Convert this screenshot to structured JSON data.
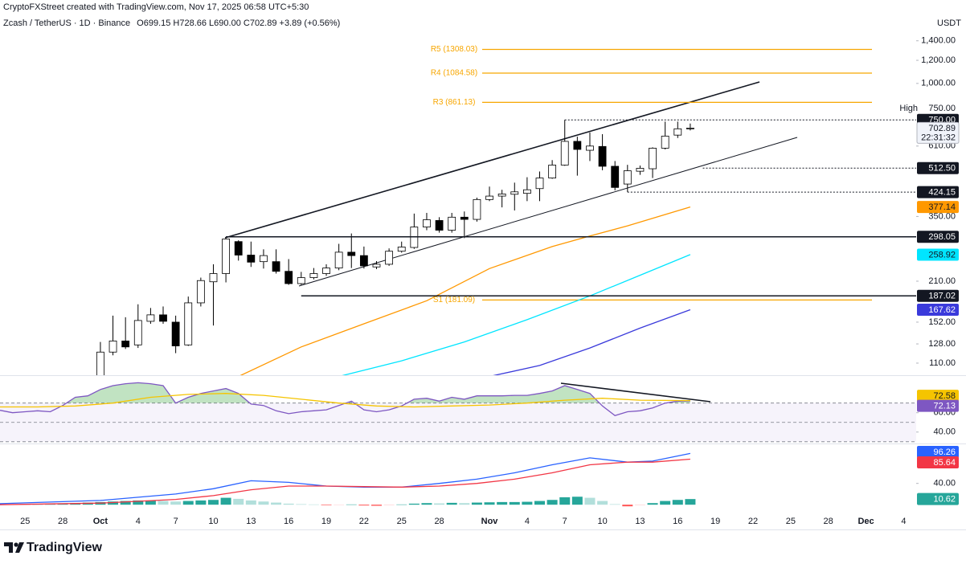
{
  "credit": "CryptoFXStreet created with TradingView.com, Nov 17, 2025 06:58 UTC+5:30",
  "quote": "O699.15 H728.66 L690.00 C702.89 +3.89 (+0.56%)",
  "currency": "USDT",
  "logo": "TradingView",
  "chart_data": [
    {
      "type": "candlestick",
      "title": "Zcash / TetherUS · 1D · Binance",
      "x": [
        "10-01",
        "10-02",
        "10-03",
        "10-04",
        "10-05",
        "10-06",
        "10-07",
        "10-08",
        "10-09",
        "10-10",
        "10-11",
        "10-12",
        "10-13",
        "10-14",
        "10-15",
        "10-16",
        "10-17",
        "10-18",
        "10-19",
        "10-20",
        "10-21",
        "10-22",
        "10-23",
        "10-24",
        "10-25",
        "10-26",
        "10-27",
        "10-28",
        "10-29",
        "10-30",
        "10-31",
        "11-01",
        "11-02",
        "11-03",
        "11-04",
        "11-05",
        "11-06",
        "11-07",
        "11-08",
        "11-09",
        "11-10",
        "11-11",
        "11-12",
        "11-13",
        "11-14",
        "11-15",
        "11-16",
        "11-17"
      ],
      "open": [
        98,
        120,
        131,
        127,
        153,
        161,
        152,
        127,
        177,
        209,
        223,
        287,
        258,
        245,
        245,
        227,
        206,
        216,
        223,
        233,
        264,
        257,
        235,
        240,
        266,
        274,
        322,
        339,
        314,
        348,
        342,
        400,
        411,
        417,
        420,
        436,
        474,
        525,
        633,
        590,
        608,
        520,
        452,
        500,
        510,
        600,
        665,
        699.15
      ],
      "high": [
        130,
        160,
        158,
        175,
        170,
        172,
        160,
        186,
        216,
        240,
        297,
        290,
        287,
        270,
        270,
        250,
        226,
        233,
        240,
        282,
        306,
        276,
        246,
        272,
        287,
        358,
        360,
        348,
        360,
        364,
        406,
        443,
        432,
        457,
        477,
        499,
        546,
        750,
        657,
        679,
        670,
        542,
        526,
        523,
        604,
        740,
        740,
        728.66
      ],
      "low": [
        96,
        117,
        123,
        124,
        150,
        150,
        119,
        126,
        172,
        148,
        208,
        247,
        235,
        232,
        223,
        204,
        204,
        213,
        219,
        229,
        233,
        232,
        231,
        237,
        263,
        271,
        314,
        308,
        308,
        295,
        336,
        395,
        376,
        367,
        395,
        395,
        471,
        522,
        483,
        542,
        504,
        430,
        424.15,
        486,
        474,
        594,
        650,
        690
      ],
      "close": [
        120,
        131,
        125,
        154,
        161,
        153,
        126,
        177,
        211,
        223,
        293,
        258,
        244,
        257,
        227,
        206,
        216,
        223,
        233,
        264,
        257,
        237,
        240,
        266,
        275,
        322,
        341,
        314,
        348,
        342,
        400,
        411,
        418,
        425,
        432,
        474,
        525,
        633,
        594,
        610,
        520,
        440,
        502,
        512,
        600,
        660,
        699,
        702.89
      ],
      "countdown": "22:31:32",
      "colors": {
        "up": "#ffffff",
        "down": "#000000",
        "wick": "#000000",
        "last": "#f0f3fa"
      },
      "log_scale": true,
      "grid": false,
      "xlim": [
        "09-23",
        "12-05"
      ],
      "xticks": [
        {
          "value": "09-25",
          "label": "25"
        },
        {
          "value": "09-28",
          "label": "28"
        },
        {
          "value": "10-01",
          "label": "Oct"
        },
        {
          "value": "10-04",
          "label": "4"
        },
        {
          "value": "10-07",
          "label": "7"
        },
        {
          "value": "10-10",
          "label": "10"
        },
        {
          "value": "10-13",
          "label": "13"
        },
        {
          "value": "10-16",
          "label": "16"
        },
        {
          "value": "10-19",
          "label": "19"
        },
        {
          "value": "10-22",
          "label": "22"
        },
        {
          "value": "10-25",
          "label": "25"
        },
        {
          "value": "10-28",
          "label": "28"
        },
        {
          "value": "11-01",
          "label": "Nov"
        },
        {
          "value": "11-04",
          "label": "4"
        },
        {
          "value": "11-07",
          "label": "7"
        },
        {
          "value": "11-10",
          "label": "10"
        },
        {
          "value": "11-13",
          "label": "13"
        },
        {
          "value": "11-16",
          "label": "16"
        },
        {
          "value": "11-19",
          "label": "19"
        },
        {
          "value": "11-22",
          "label": "22"
        },
        {
          "value": "11-25",
          "label": "25"
        },
        {
          "value": "11-28",
          "label": "28"
        },
        {
          "value": "12-01",
          "label": "Dec"
        },
        {
          "value": "12-04",
          "label": "4"
        }
      ],
      "ylim": [
        100,
        1680
      ],
      "yticks": [
        {
          "value": 110,
          "label": "110.00"
        },
        {
          "value": 128,
          "label": "128.00"
        },
        {
          "value": 152,
          "label": "152.00"
        },
        {
          "value": 210,
          "label": "210.00"
        },
        {
          "value": 350,
          "label": "350.00"
        },
        {
          "value": 610,
          "label": "610.00"
        },
        {
          "value": 1000,
          "label": "1,000.00"
        },
        {
          "value": 1200,
          "label": "1,200.00"
        },
        {
          "value": 1400,
          "label": "1,400.00"
        }
      ],
      "pivot_color": "#f7a600",
      "pivots": [
        {
          "label": "R5 (1308.03)",
          "value": 1308.03
        },
        {
          "label": "R4 (1084.58)",
          "value": 1084.58
        },
        {
          "label": "R3 (861.13)",
          "value": 861.13
        },
        {
          "label": "S1 (181.09)",
          "value": 181.09
        }
      ],
      "levels": [
        {
          "value": 750,
          "label": "750.00",
          "start": "11-07",
          "style": "dotted",
          "note": "High"
        },
        {
          "value": 512.5,
          "label": "512.50",
          "start": "11-18",
          "style": "dotted"
        },
        {
          "value": 424.15,
          "label": "424.15",
          "start": "11-12",
          "style": "dotted"
        },
        {
          "value": 298.05,
          "label": "298.05",
          "start": "10-11",
          "style": "solid"
        },
        {
          "value": 187.02,
          "label": "187.02",
          "start": "10-17",
          "style": "solid"
        }
      ],
      "series": [
        {
          "color": "#ff9800",
          "x": [
            "10-12",
            "10-17",
            "10-22",
            "10-27",
            "11-01",
            "11-06",
            "11-09",
            "11-12",
            "11-17"
          ],
          "values": [
            99,
            125,
            150,
            180,
            232,
            276,
            300,
            325,
            377.14
          ]
        },
        {
          "color": "#00e5ff",
          "x": [
            "10-20",
            "10-25",
            "10-30",
            "11-04",
            "11-09",
            "11-13",
            "11-17"
          ],
          "values": [
            99,
            112,
            130,
            155,
            187,
            220,
            258.92
          ]
        },
        {
          "color": "#3a3adb",
          "x": [
            "11-01",
            "11-05",
            "11-09",
            "11-13",
            "11-17"
          ],
          "values": [
            99,
            108,
            124,
            145,
            167.62
          ]
        }
      ]
    },
    {
      "type": "line",
      "x": [
        "09-23",
        "09-24",
        "09-25",
        "09-26",
        "09-27",
        "09-28",
        "09-29",
        "09-30",
        "10-01",
        "10-02",
        "10-03",
        "10-04",
        "10-05",
        "10-06",
        "10-07",
        "10-08",
        "10-09",
        "10-10",
        "10-11",
        "10-12",
        "10-13",
        "10-14",
        "10-15",
        "10-16",
        "10-17",
        "10-18",
        "10-19",
        "10-20",
        "10-21",
        "10-22",
        "10-23",
        "10-24",
        "10-25",
        "10-26",
        "10-27",
        "10-28",
        "10-29",
        "10-30",
        "10-31",
        "11-01",
        "11-02",
        "11-03",
        "11-04",
        "11-05",
        "11-06",
        "11-07",
        "11-08",
        "11-09",
        "11-10",
        "11-11",
        "11-12",
        "11-13",
        "11-14",
        "11-15",
        "11-16",
        "11-17"
      ],
      "ylim": [
        29,
        98
      ],
      "yticks": [
        {
          "value": 60,
          "label": "60.00"
        },
        {
          "value": 40,
          "label": "40.00"
        }
      ],
      "band": [
        30,
        70
      ],
      "midline": 50,
      "band_color": "#7e57c2",
      "fill_color": "#4caf50",
      "series": [
        {
          "color": "#7e57c2",
          "values": [
            62.5,
            60,
            61,
            62,
            61,
            67.5,
            76,
            77.5,
            84,
            88,
            90,
            91,
            90,
            88,
            70,
            76,
            80,
            82.5,
            85,
            80,
            69,
            67.5,
            62,
            59,
            61,
            62,
            63,
            67.5,
            72,
            63,
            61,
            63,
            67,
            74,
            75,
            72,
            76,
            74,
            77.5,
            77.5,
            77.5,
            78,
            78,
            80,
            82.5,
            88,
            84,
            80,
            67,
            57,
            61,
            62,
            65,
            70,
            72,
            72.13
          ]
        },
        {
          "color": "#f5c400",
          "x": [
            "09-23",
            "09-26",
            "09-29",
            "10-02",
            "10-05",
            "10-08",
            "10-11",
            "10-14",
            "10-17",
            "10-20",
            "10-23",
            "10-26",
            "10-29",
            "11-01",
            "11-04",
            "11-07",
            "11-10",
            "11-13",
            "11-17"
          ],
          "values": [
            66,
            66,
            67,
            70,
            76,
            79,
            80,
            78,
            74,
            70,
            67,
            66,
            67,
            68,
            70,
            73,
            75,
            73,
            72.58
          ]
        }
      ]
    },
    {
      "type": "macd",
      "x": [
        "09-23",
        "09-24",
        "09-25",
        "09-26",
        "09-27",
        "09-28",
        "09-29",
        "09-30",
        "10-01",
        "10-02",
        "10-03",
        "10-04",
        "10-05",
        "10-06",
        "10-07",
        "10-08",
        "10-09",
        "10-10",
        "10-11",
        "10-12",
        "10-13",
        "10-14",
        "10-15",
        "10-16",
        "10-17",
        "10-18",
        "10-19",
        "10-20",
        "10-21",
        "10-22",
        "10-23",
        "10-24",
        "10-25",
        "10-26",
        "10-27",
        "10-28",
        "10-29",
        "10-30",
        "10-31",
        "11-01",
        "11-02",
        "11-03",
        "11-04",
        "11-05",
        "11-06",
        "11-07",
        "11-08",
        "11-09",
        "11-10",
        "11-11",
        "11-12",
        "11-13",
        "11-14",
        "11-15",
        "11-16",
        "11-17"
      ],
      "histogram": [
        1,
        1,
        1.5,
        1.5,
        2,
        2.5,
        3,
        4,
        5,
        6,
        7,
        8,
        8,
        7,
        6,
        7,
        8,
        9,
        13,
        11,
        8,
        6,
        4,
        2,
        1,
        0.5,
        -1,
        -0.5,
        0.5,
        -1.5,
        -2,
        -1,
        0.5,
        2,
        3,
        2.5,
        3.5,
        3,
        4,
        4.5,
        5,
        5,
        5.5,
        7,
        9,
        14,
        15,
        13,
        7,
        1,
        -3,
        -1,
        3,
        7,
        9,
        10.62
      ],
      "colors": {
        "rising": "#26a69a",
        "falling": "#b2dfdb",
        "negative_falling": "#ff5252",
        "negative_rising": "#ffcdd2"
      },
      "ylim": [
        -45,
        109
      ],
      "yticks": [
        {
          "value": 40,
          "label": "40.00"
        }
      ],
      "series": [
        {
          "color": "#2962ff",
          "x": [
            "09-23",
            "10-01",
            "10-07",
            "10-10",
            "10-13",
            "10-16",
            "10-19",
            "10-22",
            "10-25",
            "10-28",
            "10-31",
            "11-03",
            "11-06",
            "11-09",
            "11-12",
            "11-14",
            "11-17"
          ],
          "values": [
            2,
            8,
            20,
            30,
            45,
            42,
            35,
            33,
            33,
            40,
            48,
            60,
            75,
            88,
            80,
            82,
            96.26
          ]
        },
        {
          "color": "#f23645",
          "x": [
            "09-23",
            "10-01",
            "10-07",
            "10-10",
            "10-13",
            "10-16",
            "10-19",
            "10-22",
            "10-25",
            "10-28",
            "10-31",
            "11-03",
            "11-06",
            "11-09",
            "11-12",
            "11-14",
            "11-17"
          ],
          "values": [
            0,
            3,
            10,
            17,
            28,
            35,
            35,
            34,
            33,
            35,
            40,
            48,
            60,
            75,
            80,
            80,
            85.64
          ]
        }
      ]
    }
  ]
}
